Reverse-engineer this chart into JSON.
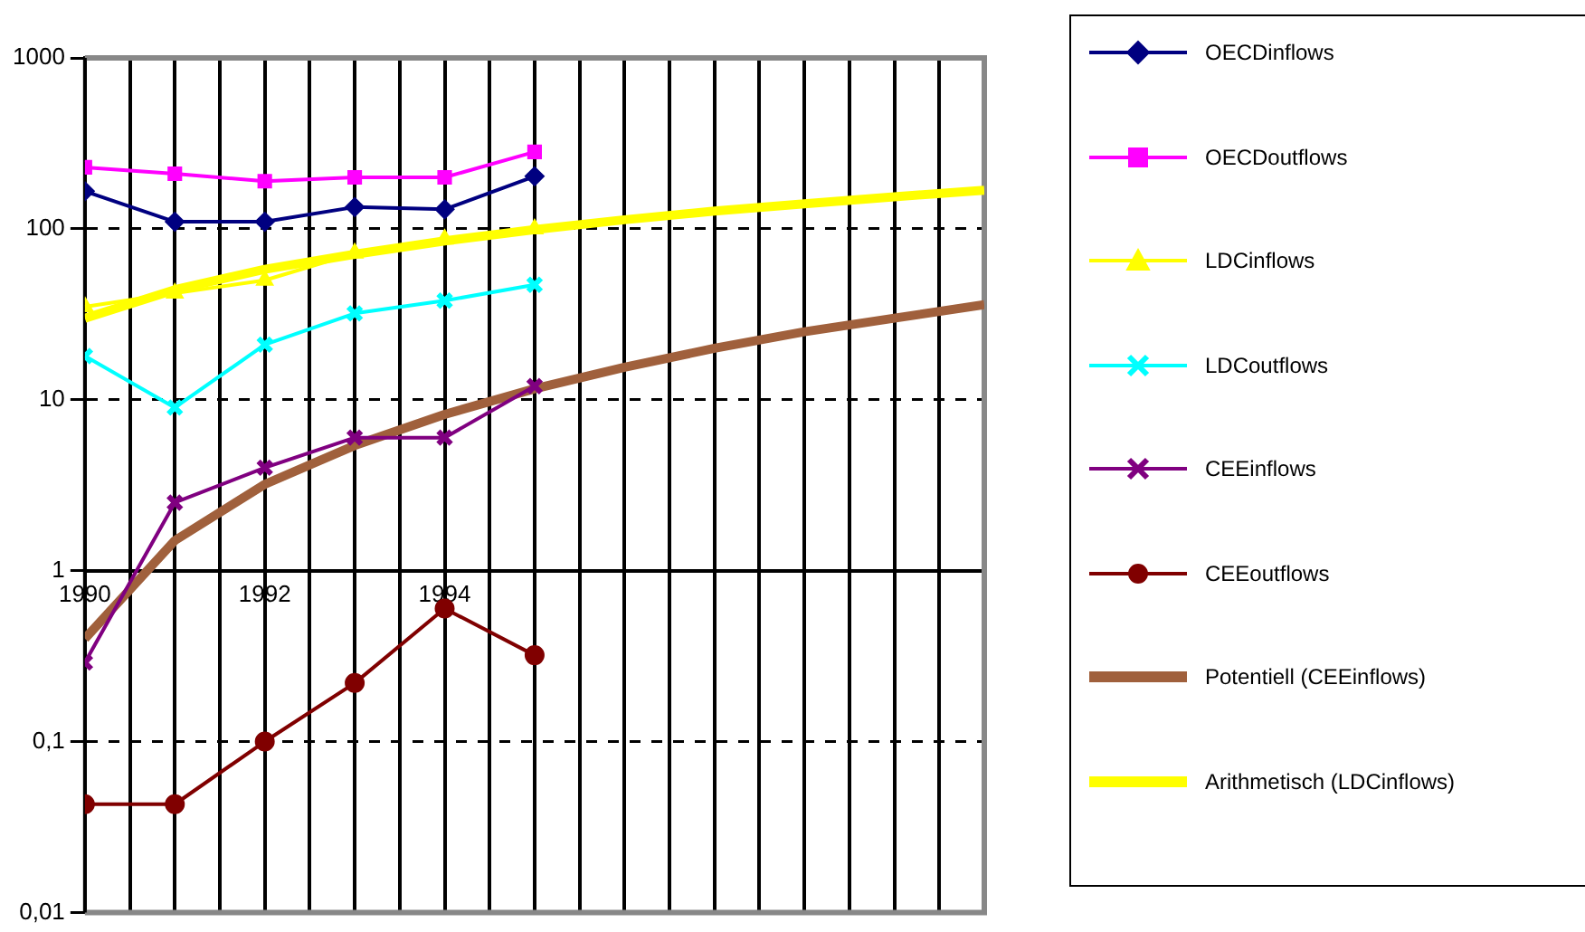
{
  "chart_data": {
    "type": "line",
    "xlim": [
      1990,
      2000
    ],
    "xticks": [
      1990,
      {
        "value": 1990.5,
        "label": null
      },
      {
        "value": 1991,
        "label": null
      },
      {
        "value": 1991.5,
        "label": null
      },
      1992,
      {
        "value": 1992.5,
        "label": null
      },
      {
        "value": 1993,
        "label": null
      },
      {
        "value": 1993.5,
        "label": null
      },
      1994,
      {
        "value": 1994.5,
        "label": null
      },
      {
        "value": 1995,
        "label": null
      },
      {
        "value": 1995.5,
        "label": null
      },
      {
        "value": 1996,
        "label": null
      },
      {
        "value": 1996.5,
        "label": null
      },
      {
        "value": 1997,
        "label": null
      },
      {
        "value": 1997.5,
        "label": null
      },
      {
        "value": 1998,
        "label": null
      },
      {
        "value": 1998.5,
        "label": null
      },
      {
        "value": 1999,
        "label": null
      },
      {
        "value": 1999.5,
        "label": null
      },
      {
        "value": 2000,
        "label": null
      }
    ],
    "ylim": [
      0.01,
      1000
    ],
    "yticks": [
      {
        "value": 0.01,
        "label": "0,01"
      },
      {
        "value": 0.1,
        "label": "0,1"
      },
      1,
      10,
      100,
      1000
    ],
    "log": "y",
    "grid": true,
    "legend": "right",
    "series": [
      {
        "name": "OECDinflows",
        "color": "#000080",
        "marker": "diamond",
        "x": [
          1990,
          1991,
          1992,
          1993,
          1994,
          1995
        ],
        "values": [
          166,
          110,
          110,
          134,
          130,
          203
        ]
      },
      {
        "name": "OECDoutflows",
        "color": "#ff00ff",
        "marker": "square",
        "x": [
          1990,
          1991,
          1992,
          1993,
          1994,
          1995
        ],
        "values": [
          229,
          210,
          190,
          200,
          200,
          282
        ]
      },
      {
        "name": "LDCinflows",
        "color": "#ffff00",
        "marker": "triangle",
        "x": [
          1990,
          1991,
          1992,
          1993,
          1994,
          1995
        ],
        "values": [
          35,
          42,
          50,
          72,
          87,
          100
        ]
      },
      {
        "name": "LDCoutflows",
        "color": "#00ffff",
        "marker": "cross",
        "x": [
          1990,
          1991,
          1992,
          1993,
          1994,
          1995
        ],
        "values": [
          18,
          9,
          21,
          32,
          38,
          47
        ]
      },
      {
        "name": "CEEinflows",
        "color": "#800080",
        "marker": "cross",
        "x": [
          1990,
          1991,
          1992,
          1993,
          1994,
          1995
        ],
        "values": [
          0.29,
          2.5,
          4,
          6,
          6,
          12
        ]
      },
      {
        "name": "CEEoutflows",
        "color": "#800000",
        "marker": "circle",
        "x": [
          1990,
          1991,
          1992,
          1993,
          1994,
          1995
        ],
        "values": [
          0.043,
          0.043,
          0.1,
          0.22,
          0.6,
          0.32
        ]
      },
      {
        "name": "Potentiell (CEEinflows)",
        "color": "#a0603c",
        "marker": "none",
        "x": [
          1990,
          1991,
          1992,
          1993,
          1994,
          1995,
          1996,
          1997,
          1998,
          1999,
          2000
        ],
        "values": [
          0.4,
          1.5,
          3.2,
          5.4,
          8.2,
          11.6,
          15.5,
          20,
          25,
          30,
          36
        ]
      },
      {
        "name": "Arithmetisch (LDCinflows)",
        "color": "#ffff00",
        "marker": "none",
        "x": [
          1990,
          1991,
          1992,
          1993,
          1994,
          1995,
          1996,
          1997,
          1998,
          1999,
          2000
        ],
        "values": [
          30,
          44,
          58,
          71,
          85,
          99,
          113,
          127,
          140,
          154,
          168
        ]
      }
    ]
  }
}
